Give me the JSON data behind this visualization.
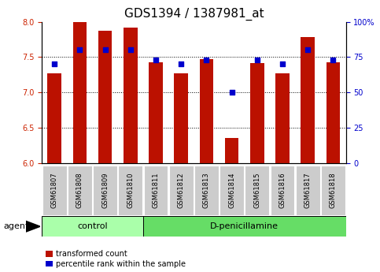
{
  "title": "GDS1394 / 1387981_at",
  "samples": [
    "GSM61807",
    "GSM61808",
    "GSM61809",
    "GSM61810",
    "GSM61811",
    "GSM61812",
    "GSM61813",
    "GSM61814",
    "GSM61815",
    "GSM61816",
    "GSM61817",
    "GSM61818"
  ],
  "transformed_count": [
    7.27,
    8.0,
    7.87,
    7.92,
    7.43,
    7.27,
    7.47,
    6.36,
    7.42,
    7.27,
    7.78,
    7.43
  ],
  "percentile_rank": [
    70,
    80,
    80,
    80,
    73,
    70,
    73,
    50,
    73,
    70,
    80,
    73
  ],
  "ylim_left": [
    6.0,
    8.0
  ],
  "ylim_right": [
    0,
    100
  ],
  "yticks_left": [
    6.0,
    6.5,
    7.0,
    7.5,
    8.0
  ],
  "yticks_right": [
    0,
    25,
    50,
    75,
    100
  ],
  "ytick_labels_right": [
    "0",
    "25",
    "50",
    "75",
    "100%"
  ],
  "grid_values": [
    6.5,
    7.0,
    7.5
  ],
  "bar_color": "#bb1100",
  "dot_color": "#0000cc",
  "n_control": 4,
  "control_label": "control",
  "treatment_label": "D-penicillamine",
  "agent_label": "agent",
  "legend_bar_label": "transformed count",
  "legend_dot_label": "percentile rank within the sample",
  "control_bg": "#aaffaa",
  "treatment_bg": "#66dd66",
  "sample_bg": "#cccccc",
  "bar_width": 0.55,
  "dot_size": 25,
  "title_fontsize": 11,
  "tick_fontsize": 7,
  "label_fontsize": 8
}
